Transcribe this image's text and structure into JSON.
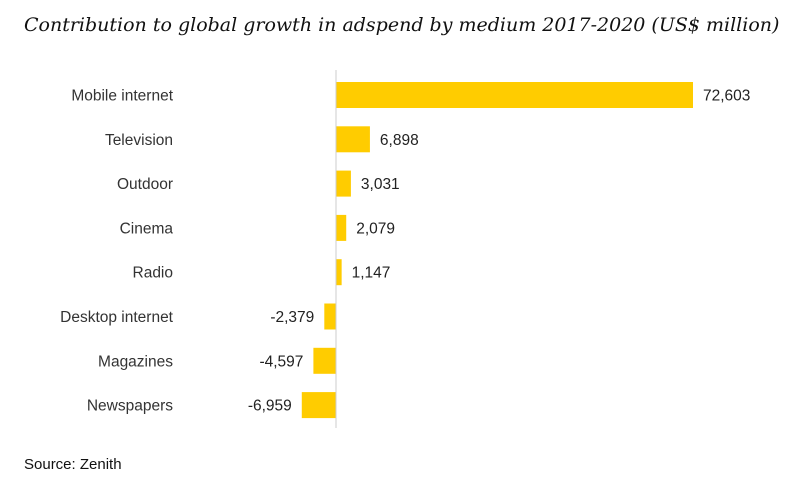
{
  "chart_data": {
    "type": "bar",
    "orientation": "horizontal",
    "title": "Contribution to global growth in adspend by medium 2017-2020 (US$ million)",
    "categories": [
      "Mobile internet",
      "Television",
      "Outdoor",
      "Cinema",
      "Radio",
      "Desktop internet",
      "Magazines",
      "Newspapers"
    ],
    "values": [
      72603,
      6898,
      3031,
      2079,
      1147,
      -2379,
      -4597,
      -6959
    ],
    "value_labels": [
      "72,603",
      "6,898",
      "3,031",
      "2,079",
      "1,147",
      "-2,379",
      "-4,597",
      "-6,959"
    ],
    "xlim": [
      -7000,
      73000
    ],
    "bar_color": "#FFCC00",
    "axis_color": "#cccccc",
    "grid": false,
    "legend": "none"
  },
  "source": "Source: Zenith"
}
